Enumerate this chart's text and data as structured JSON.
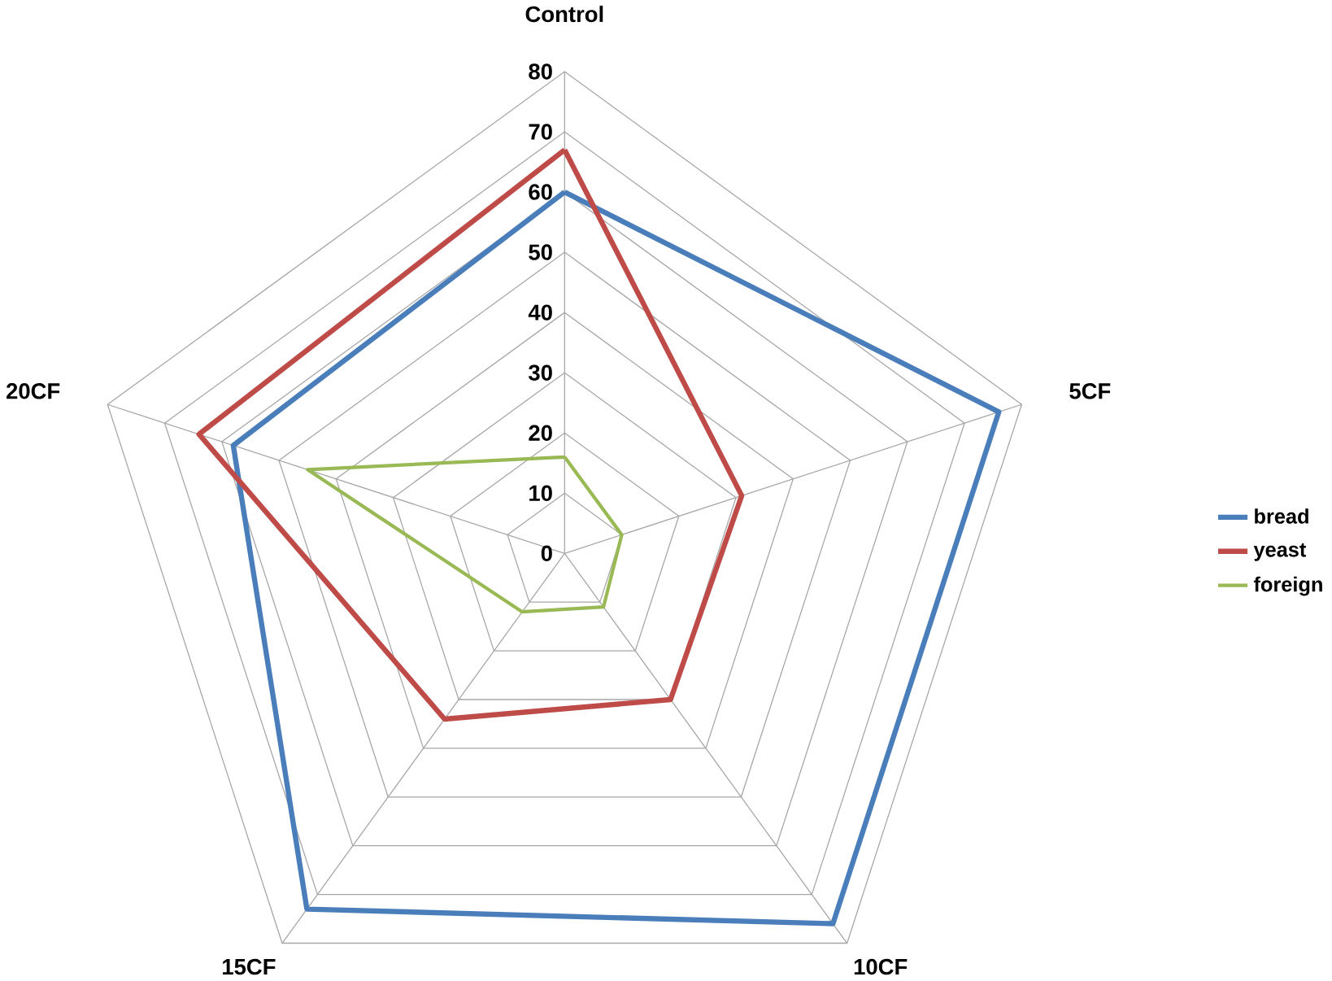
{
  "chart_data": {
    "type": "radar",
    "categories": [
      "Control",
      "5CF",
      "10CF",
      "15CF",
      "20CF"
    ],
    "series": [
      {
        "name": "bread",
        "color": "#4a7ebb",
        "values": [
          60,
          76,
          76,
          73,
          58
        ]
      },
      {
        "name": "yeast",
        "color": "#be4b48",
        "values": [
          67,
          31,
          30,
          34,
          64
        ]
      },
      {
        "name": "foreign",
        "color": "#98b954",
        "values": [
          16,
          10,
          11,
          12,
          45
        ]
      }
    ],
    "ylim": [
      0,
      80
    ],
    "yticks": [
      {
        "value": 0,
        "label": "0"
      },
      10,
      20,
      30,
      40,
      50,
      60,
      70,
      80
    ],
    "grid": true,
    "legend": "right",
    "marker": "none"
  }
}
